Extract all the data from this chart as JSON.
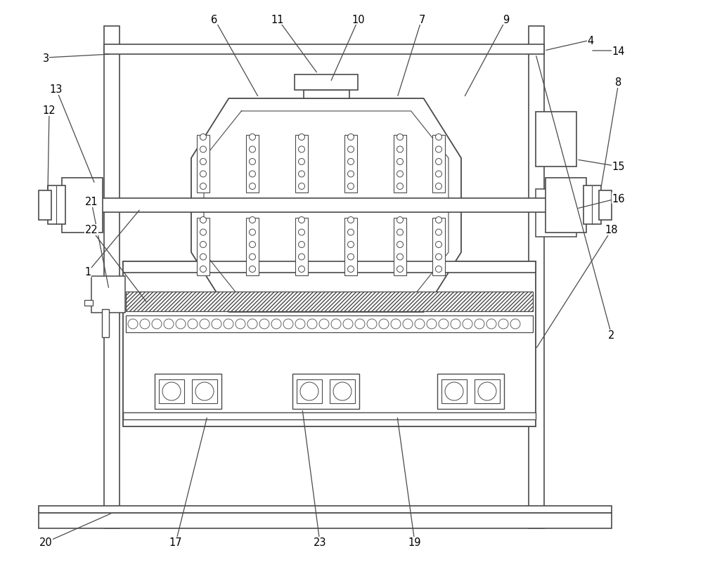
{
  "bg_color": "#ffffff",
  "line_color": "#4a4a4a",
  "line_width": 1.0,
  "fig_width": 10.0,
  "fig_height": 8.28
}
